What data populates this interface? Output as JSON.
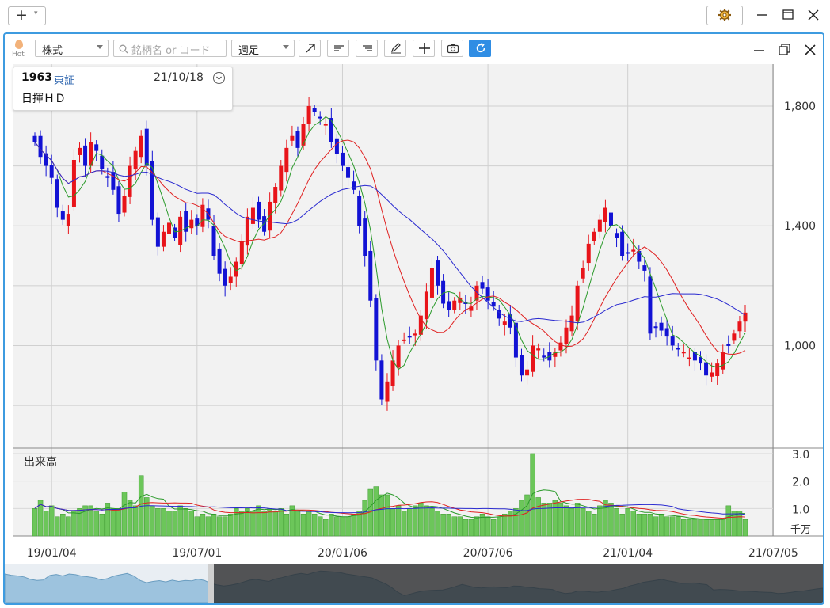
{
  "window": {
    "add_label": "+",
    "controls": [
      "settings",
      "minimize",
      "maximize",
      "close"
    ]
  },
  "toolbar": {
    "hot_label": "Hot",
    "market_type": "株式",
    "search_placeholder": "銘柄名 or コード",
    "period": "週足"
  },
  "stock": {
    "code": "1963",
    "market": "東証",
    "date": "21/10/18",
    "name": "日揮ＨＤ"
  },
  "colors": {
    "up": "#e8141a",
    "down": "#1212d4",
    "ma_short": "#2a9a2a",
    "ma_mid": "#e02020",
    "ma_long": "#2a2ad0",
    "volume": "#6cc65a",
    "accent": "#2f8de4"
  },
  "chart_data": {
    "type": "candlestick",
    "price_axis": {
      "ticks": [
        "1,800",
        "1,400",
        "1,000"
      ],
      "ylim": [
        660,
        1940
      ]
    },
    "volume_axis": {
      "title": "出来高",
      "ticks": [
        "3.0",
        "2.0",
        "1.0"
      ],
      "unit": "千万",
      "ylim": [
        0,
        3.2
      ]
    },
    "x_labels": [
      "19/01/04",
      "19/07/01",
      "20/01/06",
      "20/07/06",
      "21/01/04",
      "21/07/05"
    ],
    "close_series": [
      1680,
      1630,
      1600,
      1560,
      1460,
      1420,
      1440,
      1620,
      1660,
      1600,
      1680,
      1650,
      1590,
      1560,
      1520,
      1440,
      1500,
      1600,
      1650,
      1700,
      1600,
      1420,
      1330,
      1380,
      1410,
      1360,
      1430,
      1380,
      1420,
      1400,
      1470,
      1420,
      1300,
      1240,
      1200,
      1230,
      1280,
      1350,
      1430,
      1460,
      1420,
      1380,
      1480,
      1530,
      1600,
      1660,
      1700,
      1660,
      1740,
      1800,
      1780,
      1760,
      1740,
      1680,
      1640,
      1600,
      1560,
      1520,
      1400,
      1300,
      1150,
      950,
      820,
      880,
      950,
      1000,
      1020,
      1030,
      1040,
      1100,
      1180,
      1260,
      1200,
      1140,
      1120,
      1150,
      1160,
      1140,
      1130,
      1200,
      1190,
      1150,
      1130,
      1090,
      1080,
      1060,
      960,
      900,
      920,
      1000,
      990,
      960,
      950,
      980,
      1010,
      1060,
      1100,
      1200,
      1260,
      1340,
      1380,
      1420,
      1460,
      1400,
      1360,
      1300,
      1310,
      1320,
      1280,
      1250,
      1040,
      1060,
      1050,
      1030,
      1000,
      990,
      980,
      960,
      950,
      940,
      900,
      910,
      940,
      980,
      1000,
      1040,
      1080,
      1110
    ],
    "volume_series": [
      1.0,
      1.3,
      0.9,
      1.1,
      0.7,
      0.8,
      0.7,
      0.9,
      1.0,
      1.1,
      1.1,
      0.9,
      0.8,
      1.2,
      1.0,
      1.0,
      1.6,
      1.3,
      1.1,
      2.2,
      1.4,
      1.1,
      1.0,
      1.0,
      0.9,
      0.9,
      1.1,
      1.0,
      0.9,
      0.7,
      0.8,
      0.7,
      0.8,
      0.7,
      0.7,
      0.8,
      1.0,
      0.9,
      1.0,
      0.9,
      1.1,
      0.9,
      1.0,
      0.9,
      1.0,
      0.8,
      1.1,
      0.9,
      0.8,
      0.9,
      0.8,
      0.7,
      0.6,
      0.8,
      0.7,
      0.7,
      0.7,
      0.8,
      0.9,
      1.3,
      1.7,
      1.8,
      1.5,
      1.5,
      1.0,
      1.1,
      0.9,
      1.0,
      1.1,
      1.2,
      1.1,
      1.0,
      0.9,
      0.8,
      0.8,
      0.7,
      0.7,
      0.6,
      0.6,
      0.7,
      0.8,
      0.7,
      0.6,
      0.7,
      0.8,
      0.9,
      1.0,
      1.3,
      1.5,
      3.0,
      1.4,
      1.2,
      1.2,
      1.3,
      1.2,
      1.1,
      1.0,
      1.2,
      1.0,
      0.9,
      0.8,
      1.1,
      1.3,
      1.2,
      1.0,
      0.8,
      1.0,
      0.9,
      0.8,
      0.8,
      0.8,
      0.7,
      0.8,
      0.7,
      0.7,
      0.7,
      0.6,
      0.6,
      0.6,
      0.6,
      0.6,
      0.6,
      0.6,
      0.6,
      1.1,
      0.9,
      0.9,
      0.6
    ]
  }
}
